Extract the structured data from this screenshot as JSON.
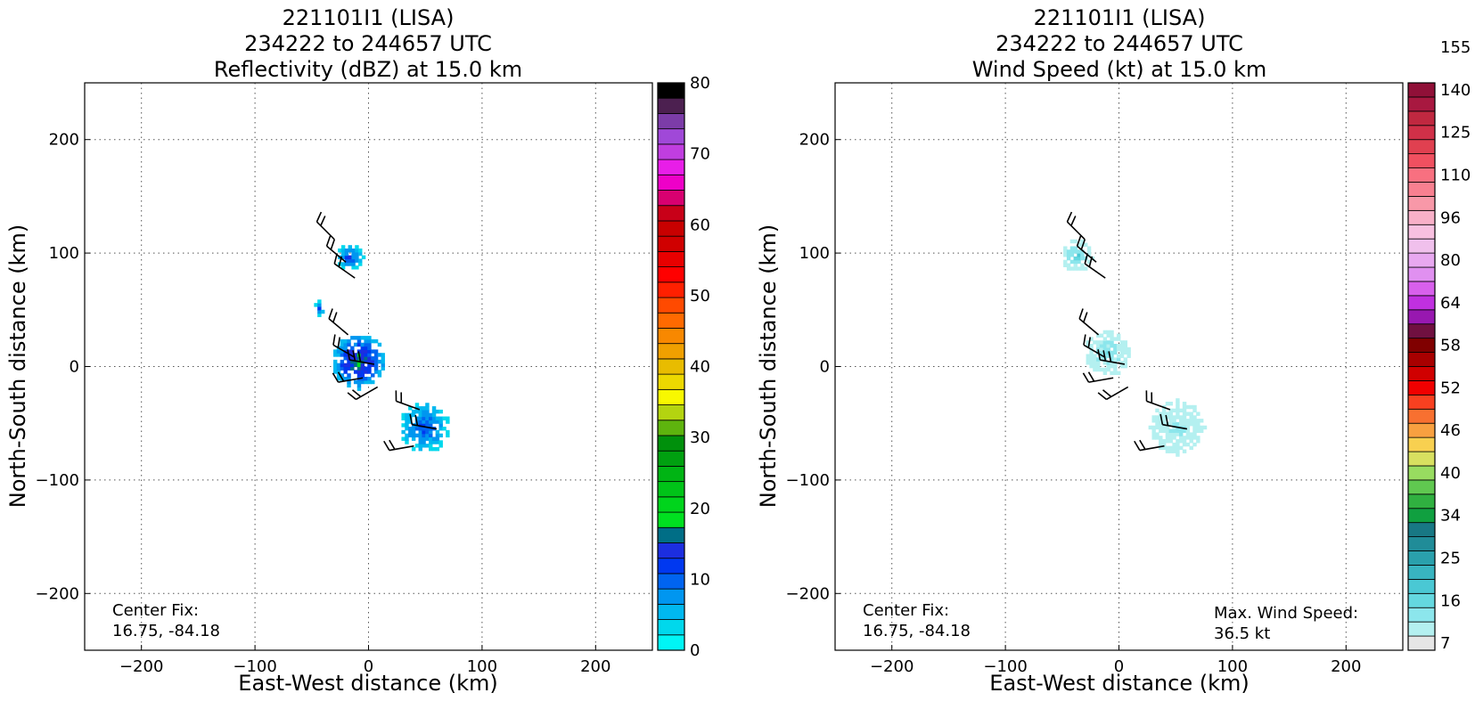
{
  "chart_data": [
    {
      "type": "heatmap",
      "title_lines": [
        "221101I1 (LISA)",
        "234222 to 244657 UTC",
        "Reflectivity (dBZ) at 15.0 km"
      ],
      "xlabel": "East-West distance (km)",
      "ylabel": "North-South distance (km)",
      "xlim": [
        -250,
        250
      ],
      "ylim": [
        -250,
        250
      ],
      "xticks": [
        -200,
        -100,
        0,
        100,
        200
      ],
      "yticks": [
        200,
        100,
        0,
        -100,
        -200
      ],
      "xtick_labels": [
        "−200",
        "−100",
        "0",
        "100",
        "200"
      ],
      "ytick_labels": [
        "200",
        "100",
        "0",
        "−100",
        "−200"
      ],
      "grid": true,
      "annotation_lines": [
        "Center Fix:",
        "16.75, -84.18"
      ],
      "colorbar": {
        "min": 0,
        "max": 80,
        "ticks": [
          0,
          10,
          20,
          30,
          40,
          50,
          60,
          70,
          80
        ],
        "tick_labels": [
          "0",
          "10",
          "20",
          "30",
          "40",
          "50",
          "60",
          "70",
          "80"
        ],
        "colors": [
          "#00f5f5",
          "#00d8ec",
          "#00b8f0",
          "#0096f0",
          "#0064f0",
          "#0038f0",
          "#1c2ee0",
          "#006e86",
          "#00e020",
          "#00d41c",
          "#00c418",
          "#00b414",
          "#00a010",
          "#00900c",
          "#5eb40e",
          "#b4d410",
          "#f8f800",
          "#ecd800",
          "#e8bc00",
          "#f0a000",
          "#f88800",
          "#ff6a00",
          "#ff4a00",
          "#ff2000",
          "#ff0000",
          "#e80000",
          "#d00000",
          "#c80000",
          "#c80018",
          "#d80070",
          "#ee00c8",
          "#e81ee8",
          "#c03ee0",
          "#a048d8",
          "#7c3ca8",
          "#4c2050",
          "#000000"
        ]
      },
      "clusters": [
        {
          "x": -18,
          "y": 95,
          "r": 12,
          "max_dbz": 14
        },
        {
          "x": -45,
          "y": 50,
          "r": 6,
          "max_dbz": 12
        },
        {
          "x": -10,
          "y": 3,
          "r": 24,
          "max_dbz": 22
        },
        {
          "x": 48,
          "y": -55,
          "r": 22,
          "max_dbz": 14
        }
      ]
    },
    {
      "type": "heatmap",
      "title_lines": [
        "221101I1 (LISA)",
        "234222 to 244657 UTC",
        "Wind Speed (kt) at 15.0 km"
      ],
      "xlabel": "East-West distance (km)",
      "ylabel": "North-South distance (km)",
      "xlim": [
        -250,
        250
      ],
      "ylim": [
        -250,
        250
      ],
      "xticks": [
        -200,
        -100,
        0,
        100,
        200
      ],
      "yticks": [
        200,
        100,
        0,
        -100,
        -200
      ],
      "xtick_labels": [
        "−200",
        "−100",
        "0",
        "100",
        "200"
      ],
      "ytick_labels": [
        "200",
        "100",
        "0",
        "−100",
        "−200"
      ],
      "grid": true,
      "annotation_lines": [
        "Center Fix:",
        "16.75, -84.18"
      ],
      "max_wind_lines": [
        "Max. Wind Speed:",
        "36.5 kt"
      ],
      "max_wind_speed_kt": 36.5,
      "colorbar": {
        "ticks": [
          "7",
          "16",
          "25",
          "34",
          "40",
          "46",
          "52",
          "58",
          "64",
          "80",
          "96",
          "110",
          "125",
          "140",
          "155"
        ],
        "colors": [
          "#e6e6e6",
          "#b4f0f0",
          "#8ce6ec",
          "#64d8e0",
          "#4ac8d4",
          "#38b4c0",
          "#2aa0ac",
          "#208c98",
          "#187884",
          "#10a040",
          "#30b040",
          "#60c850",
          "#98dc60",
          "#d8e060",
          "#f8d050",
          "#f8a040",
          "#f87030",
          "#f84020",
          "#f00000",
          "#d00000",
          "#a80000",
          "#800000",
          "#701040",
          "#9818b0",
          "#c030e0",
          "#d860ec",
          "#e090f0",
          "#e8a8f0",
          "#f0c0ec",
          "#f8c0e0",
          "#f8b0c8",
          "#f898a8",
          "#f88090",
          "#f87080",
          "#f05060",
          "#e04050",
          "#d03048",
          "#c02840",
          "#a81840",
          "#901038"
        ]
      },
      "clusters": [
        {
          "x": -38,
          "y": 96,
          "r": 14,
          "speed": 22
        },
        {
          "x": -12,
          "y": 10,
          "r": 20,
          "speed": 18
        },
        {
          "x": 50,
          "y": -55,
          "r": 24,
          "speed": 14
        }
      ]
    }
  ]
}
